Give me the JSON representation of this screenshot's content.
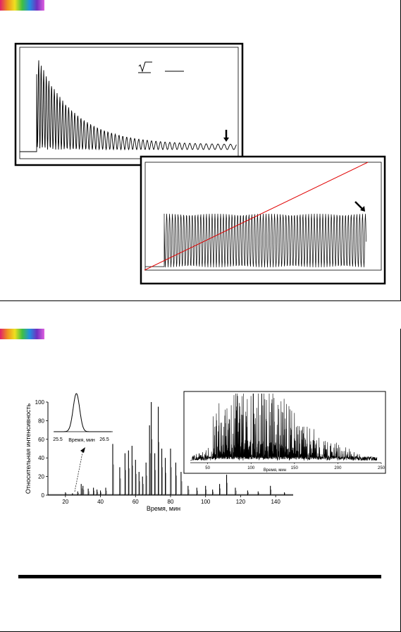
{
  "slide1": {
    "accent_strip": "rainbow-gradient",
    "panel1_marker": "arrow-down-icon",
    "panel2_marker": "arrow-diagonal-icon",
    "panel2_line_color": "#e00000",
    "formula_glyph": "sqrt"
  },
  "slide2": {
    "accent_strip": "rainbow-gradient",
    "chart_data": [
      {
        "type": "bar",
        "xlabel": "Время, мин",
        "ylabel": "Относительная интенсивность",
        "xlim": [
          10,
          150
        ],
        "ylim": [
          0,
          100
        ],
        "xticks": [
          "20",
          "40",
          "60",
          "80",
          "100",
          "120",
          "140"
        ],
        "yticks": [
          "0",
          "20",
          "40",
          "60",
          "80",
          "100"
        ],
        "x": [
          20,
          24,
          27,
          29,
          30,
          33,
          36,
          38,
          40,
          43,
          47,
          51,
          54,
          56,
          58,
          60,
          62,
          64,
          66,
          68,
          69,
          71,
          73,
          75,
          77,
          80,
          83,
          86,
          90,
          95,
          100,
          104,
          108,
          112,
          117,
          124,
          130,
          137,
          145
        ],
        "y": [
          3,
          2,
          4,
          12,
          10,
          7,
          8,
          6,
          5,
          8,
          55,
          30,
          45,
          48,
          53,
          38,
          25,
          20,
          35,
          75,
          100,
          45,
          95,
          50,
          40,
          50,
          35,
          25,
          10,
          8,
          10,
          6,
          12,
          22,
          8,
          5,
          4,
          10,
          3
        ]
      },
      {
        "type": "line",
        "xlabel": "Время, мин",
        "xlim": [
          25.5,
          26.5
        ],
        "xticks": [
          "25.5",
          "26.5"
        ],
        "peak_center": 25.9
      },
      {
        "type": "line",
        "xlabel": "Время, мин",
        "xlim": [
          30,
          250
        ],
        "xticks": [
          "50",
          "100",
          "150",
          "200",
          "250"
        ]
      }
    ]
  }
}
